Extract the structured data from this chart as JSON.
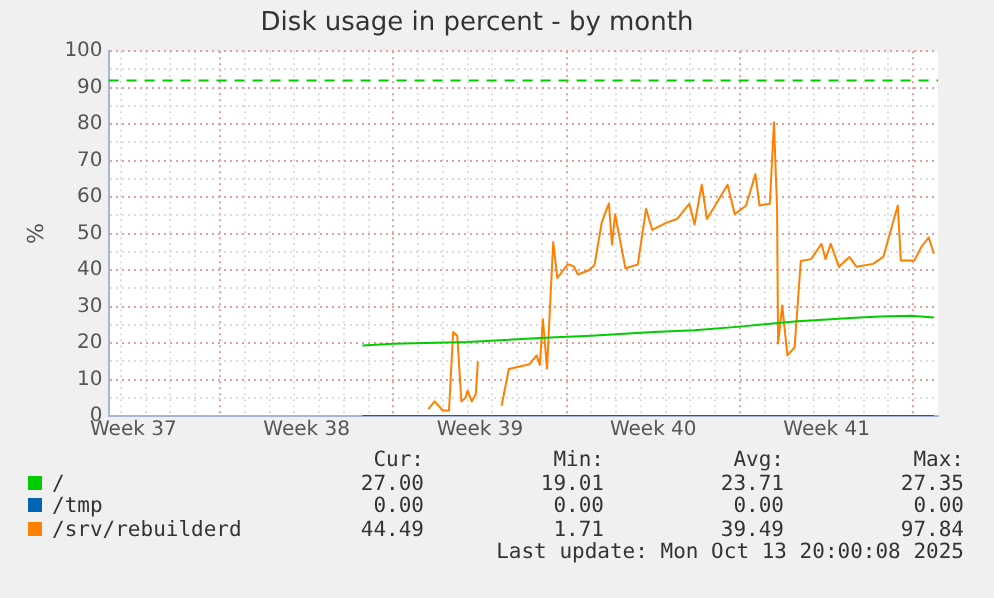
{
  "chart_data": {
    "type": "line",
    "title": "Disk usage in percent - by month",
    "ylabel": "%",
    "xlim": [
      "2025-09-10T12:00",
      "2025-10-14T00:00"
    ],
    "xticks": [
      {
        "value": "2025-09-11T12:00",
        "label": "Week 37"
      },
      {
        "value": "2025-09-18T12:00",
        "label": "Week 38"
      },
      {
        "value": "2025-09-25T12:00",
        "label": "Week 39"
      },
      {
        "value": "2025-10-02T12:00",
        "label": "Week 40"
      },
      {
        "value": "2025-10-09T12:00",
        "label": "Week 41"
      },
      {
        "value": "2025-09-11",
        "label": null
      },
      {
        "value": "2025-09-12",
        "label": null
      },
      {
        "value": "2025-09-13",
        "label": null
      },
      {
        "value": "2025-09-14",
        "label": null
      },
      {
        "value": "2025-09-15",
        "label": null
      },
      {
        "value": "2025-09-16",
        "label": null
      },
      {
        "value": "2025-09-17",
        "label": null
      },
      {
        "value": "2025-09-18",
        "label": null
      },
      {
        "value": "2025-09-19",
        "label": null
      },
      {
        "value": "2025-09-20",
        "label": null
      },
      {
        "value": "2025-09-21",
        "label": null
      },
      {
        "value": "2025-09-22",
        "label": null
      },
      {
        "value": "2025-09-23",
        "label": null
      },
      {
        "value": "2025-09-24",
        "label": null
      },
      {
        "value": "2025-09-25",
        "label": null
      },
      {
        "value": "2025-09-26",
        "label": null
      },
      {
        "value": "2025-09-27",
        "label": null
      },
      {
        "value": "2025-09-28",
        "label": null
      },
      {
        "value": "2025-09-29",
        "label": null
      },
      {
        "value": "2025-09-30",
        "label": null
      },
      {
        "value": "2025-10-01",
        "label": null
      },
      {
        "value": "2025-10-02",
        "label": null
      },
      {
        "value": "2025-10-03",
        "label": null
      },
      {
        "value": "2025-10-04",
        "label": null
      },
      {
        "value": "2025-10-05",
        "label": null
      },
      {
        "value": "2025-10-06",
        "label": null
      },
      {
        "value": "2025-10-07",
        "label": null
      },
      {
        "value": "2025-10-08",
        "label": null
      },
      {
        "value": "2025-10-09",
        "label": null
      },
      {
        "value": "2025-10-10",
        "label": null
      },
      {
        "value": "2025-10-11",
        "label": null
      },
      {
        "value": "2025-10-12",
        "label": null
      },
      {
        "value": "2025-10-13",
        "label": null
      }
    ],
    "ylim": [
      0,
      100
    ],
    "yticks": [
      0,
      {
        "value": 5,
        "label": null
      },
      10,
      {
        "value": 15,
        "label": null
      },
      20,
      {
        "value": 25,
        "label": null
      },
      30,
      {
        "value": 35,
        "label": null
      },
      40,
      {
        "value": 45,
        "label": null
      },
      50,
      {
        "value": 55,
        "label": null
      },
      60,
      {
        "value": 65,
        "label": null
      },
      70,
      {
        "value": 75,
        "label": null
      },
      80,
      {
        "value": 85,
        "label": null
      },
      90,
      {
        "value": 95,
        "label": null
      },
      100
    ],
    "grid": true,
    "legend": "bottom",
    "marker": "none",
    "line_style": "solid",
    "ref_lines": [
      {
        "axis": "y",
        "value": 92,
        "color": "#00cc00",
        "line_style": "dashed"
      }
    ],
    "series": [
      {
        "name": "/",
        "color": "#00cc00",
        "x": [
          "2025-09-20T18:00",
          "2025-09-22T00:00",
          "2025-09-25T00:00",
          "2025-09-28T08:00",
          "2025-09-30T00:00",
          "2025-10-02T12:00",
          "2025-10-04T04:00",
          "2025-10-06T00:00",
          "2025-10-08T08:00",
          "2025-10-10T20:00",
          "2025-10-11T16:00",
          "2025-10-12T22:00",
          "2025-10-13T20:00"
        ],
        "values": [
          19.3,
          19.8,
          20.3,
          21.5,
          22,
          23,
          23.5,
          24.5,
          26,
          27,
          27.3,
          27.5,
          27
        ]
      },
      {
        "name": "/tmp",
        "color": "#0066b3",
        "x": [
          "2025-09-20T18:00",
          "2025-10-13T20:00"
        ],
        "values": [
          0,
          0
        ]
      },
      {
        "name": "/srv/rebuilderd",
        "color": "#ff8000",
        "x": [
          "2025-09-23T10:00",
          "2025-09-23T16:00",
          "2025-09-24T00:00",
          "2025-09-24T06:00",
          "2025-09-24T10:00",
          "2025-09-24T14:00",
          "2025-09-24T18:00",
          "2025-09-24T22:00",
          "2025-09-25T00:00",
          "2025-09-25T04:00",
          "2025-09-25T08:00",
          "2025-09-25T10:00",
          "2025-09-25T14:00",
          "2025-09-26T09:00",
          "2025-09-26T16:00",
          "2025-09-27T12:00",
          "2025-09-27T19:00",
          "2025-09-27T22:00",
          "2025-09-28T01:00",
          "2025-09-28T05:00",
          "2025-09-28T11:00",
          "2025-09-28T15:00",
          "2025-09-29T01:00",
          "2025-09-29T07:00",
          "2025-09-29T11:00",
          "2025-09-29T21:00",
          "2025-09-30T03:00",
          "2025-09-30T10:00",
          "2025-09-30T17:00",
          "2025-09-30T20:00",
          "2025-09-30T23:00",
          "2025-10-01T09:00",
          "2025-10-01T21:00",
          "2025-10-02T05:00",
          "2025-10-02T11:00",
          "2025-10-03T01:00",
          "2025-10-03T11:00",
          "2025-10-03T23:00",
          "2025-10-04T04:00",
          "2025-10-04T11:00",
          "2025-10-04T16:00",
          "2025-10-05T00:00",
          "2025-10-05T12:00",
          "2025-10-05T19:00",
          "2025-10-06T06:00",
          "2025-10-06T15:00",
          "2025-10-06T19:00",
          "2025-10-07T05:00",
          "2025-10-07T09:00",
          "2025-10-07T12:00",
          "2025-10-07T13:00",
          "2025-10-07T17:00",
          "2025-10-07T22:00",
          "2025-10-08T05:00",
          "2025-10-08T11:00",
          "2025-10-08T21:00",
          "2025-10-09T07:00",
          "2025-10-09T11:00",
          "2025-10-09T16:00",
          "2025-10-10T00:00",
          "2025-10-10T10:00",
          "2025-10-10T17:00",
          "2025-10-11T09:00",
          "2025-10-11T19:00",
          "2025-10-12T09:00",
          "2025-10-12T12:00",
          "2025-10-13T01:00",
          "2025-10-13T08:00",
          "2025-10-13T15:00",
          "2025-10-13T20:00"
        ],
        "values": [
          1.9,
          4,
          1.5,
          1.5,
          23,
          22,
          4,
          5,
          7,
          4,
          6,
          15,
          null,
          2.8,
          12.9,
          14.2,
          16.6,
          14,
          26.5,
          13,
          47.7,
          37.8,
          41.6,
          41,
          38.8,
          39.9,
          41.3,
          53,
          58.3,
          47,
          55.3,
          40.5,
          41.5,
          56.8,
          51,
          53,
          54,
          58.2,
          52.5,
          63.4,
          54,
          57.7,
          63.4,
          55.3,
          57.7,
          66.3,
          57.7,
          58.2,
          80.5,
          56.8,
          19.9,
          30.3,
          16.6,
          18.8,
          42.5,
          43,
          47.2,
          43,
          47.2,
          40.9,
          43.6,
          40.9,
          41.7,
          43.6,
          57.7,
          42.6,
          42.6,
          46.4,
          49,
          44.5
        ]
      }
    ],
    "annotations": [
      "Cur:",
      "Min:",
      "Avg:",
      "Max:",
      "27.00",
      "19.01",
      "23.71",
      "27.35",
      "0.00",
      "0.00",
      "0.00",
      "0.00",
      "44.49",
      "1.71",
      "39.49",
      "97.84",
      "Last update: Mon Oct 13 20:00:08 2025"
    ]
  }
}
